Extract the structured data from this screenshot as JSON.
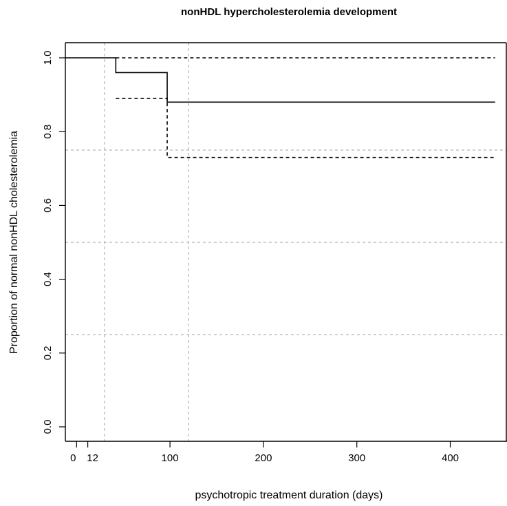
{
  "chart_data": {
    "type": "line",
    "title": "nonHDL hypercholesterolemia development",
    "xlabel": "psychotropic treatment duration (days)",
    "ylabel": "Proportion of normal nonHDL cholesterolemia",
    "xlim": [
      -12,
      460
    ],
    "ylim": [
      -0.04,
      1.04
    ],
    "x_ticks": [
      {
        "value": 0,
        "label": "0"
      },
      {
        "value": 12,
        "label": "12"
      },
      {
        "value": 100,
        "label": "100"
      },
      {
        "value": 200,
        "label": "200"
      },
      {
        "value": 300,
        "label": "300"
      },
      {
        "value": 400,
        "label": "400"
      }
    ],
    "y_ticks": [
      {
        "value": 0.0,
        "label": "0.0"
      },
      {
        "value": 0.2,
        "label": "0.2"
      },
      {
        "value": 0.4,
        "label": "0.4"
      },
      {
        "value": 0.6,
        "label": "0.6"
      },
      {
        "value": 0.8,
        "label": "0.8"
      },
      {
        "value": 1.0,
        "label": "1.0"
      }
    ],
    "reference_lines": {
      "vertical": [
        30,
        120
      ],
      "horizontal": [
        0.25,
        0.5,
        0.75
      ],
      "color": "#b3b3b3"
    },
    "series": [
      {
        "style": "solid",
        "color": "#000000",
        "steps": [
          {
            "x": -12,
            "y": 1.0
          },
          {
            "x": 42,
            "y": 0.96
          },
          {
            "x": 97,
            "y": 0.88
          },
          {
            "x": 448,
            "y": 0.88
          }
        ]
      },
      {
        "style": "dashed",
        "color": "#000000",
        "steps": [
          {
            "x": 42,
            "y": 1.0
          },
          {
            "x": 448,
            "y": 1.0
          }
        ]
      },
      {
        "style": "dashed",
        "color": "#000000",
        "steps": [
          {
            "x": 42,
            "y": 0.89
          },
          {
            "x": 97,
            "y": 0.73
          },
          {
            "x": 448,
            "y": 0.73
          }
        ]
      }
    ],
    "grid": false,
    "legend": "none"
  }
}
